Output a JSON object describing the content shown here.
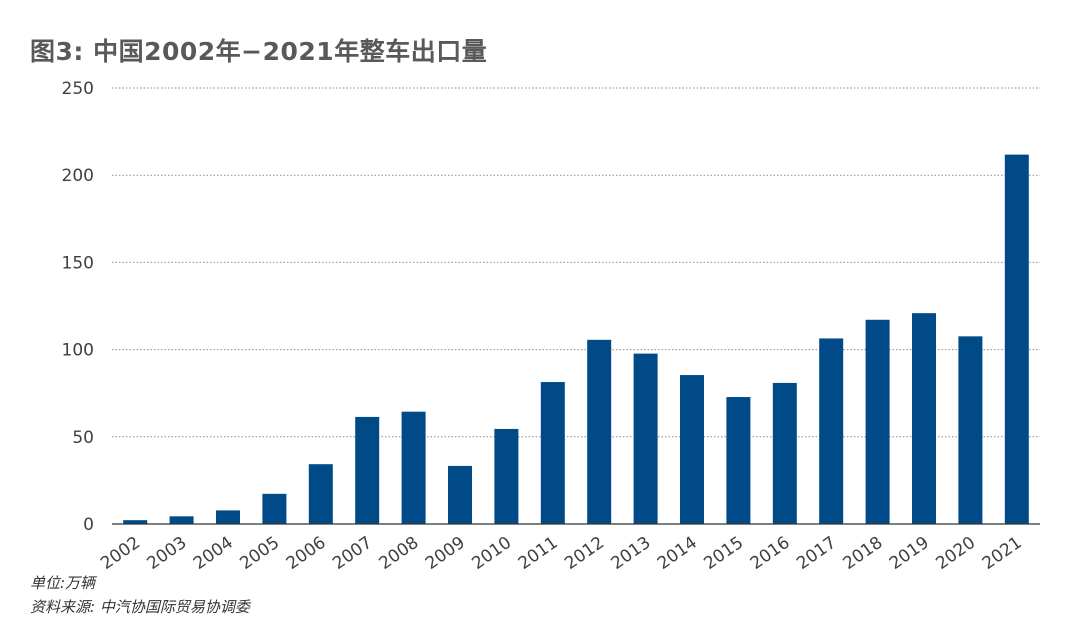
{
  "title": "图3: 中国2002年−2021年整车出口量",
  "footnotes": {
    "unit": "单位:万辆",
    "source": "资料来源: 中汽协国际贸易协调委"
  },
  "colors": {
    "bar": "#004b87",
    "grid": "#8c8c8c",
    "axis_text": "#404040"
  },
  "chart_data": {
    "type": "bar",
    "title": "图3: 中国2002年−2021年整车出口量",
    "xlabel": "",
    "ylabel": "",
    "unit": "单位:万辆",
    "categories": [
      "2002",
      "2003",
      "2004",
      "2005",
      "2006",
      "2007",
      "2008",
      "2009",
      "2010",
      "2011",
      "2012",
      "2013",
      "2014",
      "2015",
      "2016",
      "2017",
      "2018",
      "2019",
      "2020",
      "2021"
    ],
    "values": [
      2.2,
      4.4,
      7.8,
      17.3,
      34.3,
      61.4,
      64.4,
      33.3,
      54.5,
      81.4,
      105.6,
      97.7,
      85.4,
      72.8,
      80.9,
      106.4,
      117.1,
      120.9,
      107.6,
      211.8
    ],
    "ylim": [
      0,
      250
    ],
    "yticks": [
      0,
      50,
      100,
      150,
      200,
      250
    ],
    "grid": true,
    "grid_style": "dotted",
    "legend": "none"
  }
}
